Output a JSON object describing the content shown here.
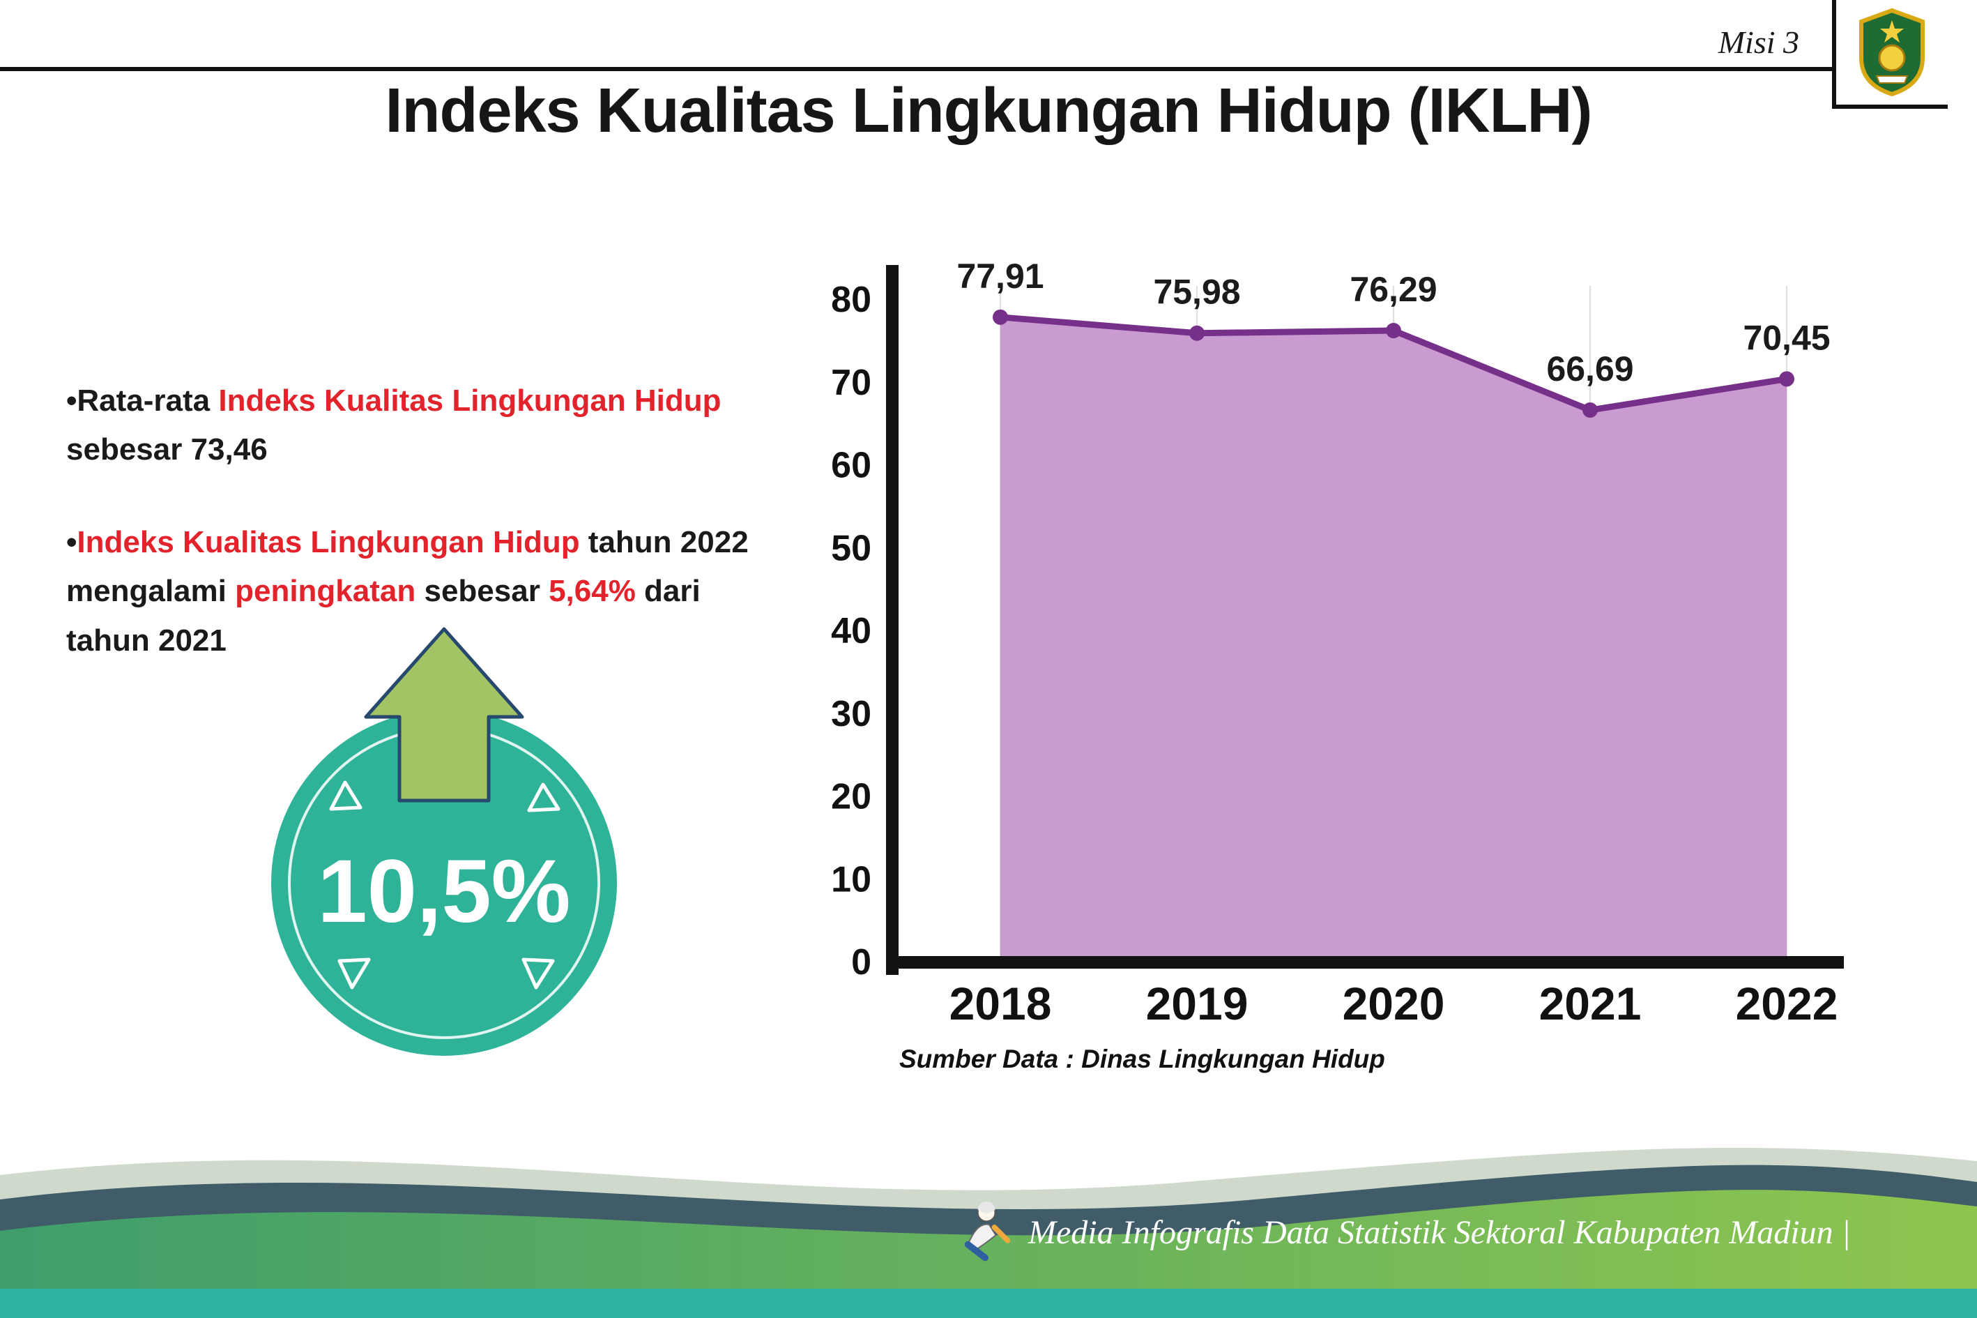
{
  "header": {
    "misi_label": "Misi 3",
    "title": "Indeks Kualitas Lingkungan Hidup (IKLH)",
    "logo_name": "kabupaten-madiun-crest"
  },
  "bullets": {
    "item1": [
      {
        "t": "•",
        "c": "black"
      },
      {
        "t": "Rata-rata ",
        "c": "black"
      },
      {
        "t": "Indeks Kualitas Lingkungan Hidup",
        "c": "red"
      },
      {
        "t": " sebesar 73,46",
        "c": "black"
      }
    ],
    "item2": [
      {
        "t": "•",
        "c": "black"
      },
      {
        "t": "Indeks Kualitas Lingkungan Hidup",
        "c": "red"
      },
      {
        "t": " tahun 2022 mengalami ",
        "c": "black"
      },
      {
        "t": "peningkatan",
        "c": "red"
      },
      {
        "t": " sebesar ",
        "c": "black"
      },
      {
        "t": "5,64%",
        "c": "red"
      },
      {
        "t": " dari tahun 2021",
        "c": "black"
      }
    ]
  },
  "badge": {
    "value": "10,5%",
    "circle_color": "#2eb398",
    "arrow_color": "#a2c464"
  },
  "chart_data": {
    "type": "area",
    "title": "",
    "categories": [
      "2018",
      "2019",
      "2020",
      "2021",
      "2022"
    ],
    "values": [
      77.91,
      75.98,
      76.29,
      66.69,
      70.45
    ],
    "value_labels": [
      "77,91",
      "75,98",
      "76,29",
      "66,69",
      "70,45"
    ],
    "xlabel": "",
    "ylabel": "",
    "ylim": [
      0,
      80
    ],
    "ytick_step": 10,
    "grid": "vertical-light",
    "legend": "none",
    "line_color": "#76308a",
    "fill_color": "#c493cd",
    "axis_color": "#111111"
  },
  "source_note": "Sumber Data : Dinas Lingkungan Hidup",
  "footer": {
    "text": "Media Infografis Data Statistik Sektoral Kabupaten Madiun |"
  },
  "colors": {
    "accent_red": "#e3232b",
    "badge_teal": "#2eb398",
    "arrow_green": "#a2c464",
    "wave_dark": "#3f5c68",
    "wave_green_left": "#3f9e6b",
    "wave_green_right": "#8ec54f",
    "wave_teal_strip": "#2eb2a2"
  }
}
